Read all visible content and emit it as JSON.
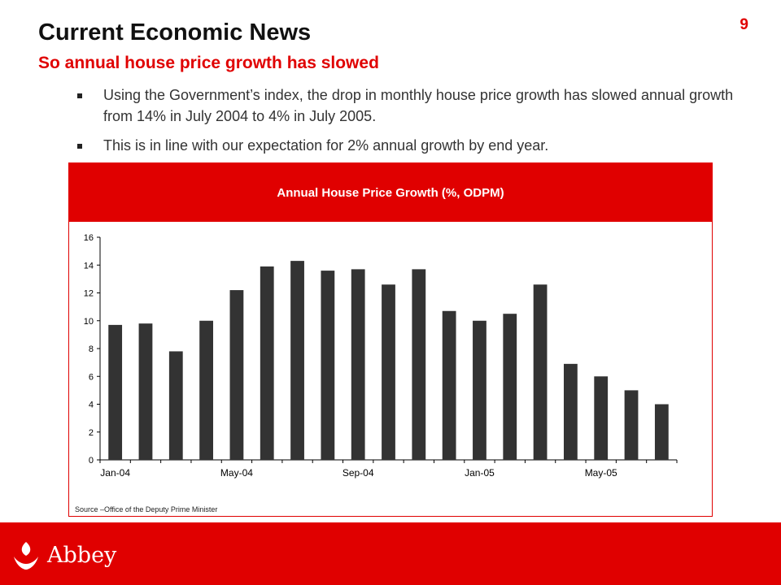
{
  "slide": {
    "page_number": "9",
    "title": "Current Economic News",
    "subtitle": "So annual house price growth has slowed",
    "bullets": [
      "Using the Government’s index, the drop in monthly house price growth has slowed annual growth from 14% in July 2004 to 4% in July 2005.",
      "This is in line with our expectation for 2% annual growth by end year."
    ],
    "source": "Source –Office of the Deputy Prime Minister",
    "logo_text": "Abbey"
  },
  "colors": {
    "accent": "#e00000",
    "bar": "#333333"
  },
  "icons": {
    "logo": "abbey-flame-icon"
  },
  "chart_data": {
    "type": "bar",
    "title": "Annual House Price Growth (%, ODPM)",
    "xlabel": "",
    "ylabel": "",
    "ylim": [
      0,
      16
    ],
    "yticks": [
      0,
      2,
      4,
      6,
      8,
      10,
      12,
      14,
      16
    ],
    "grid": false,
    "legend": "none",
    "categories": [
      "Jan-04",
      "Feb-04",
      "Mar-04",
      "Apr-04",
      "May-04",
      "Jun-04",
      "Jul-04",
      "Aug-04",
      "Sep-04",
      "Oct-04",
      "Nov-04",
      "Dec-04",
      "Jan-05",
      "Feb-05",
      "Mar-05",
      "Apr-05",
      "May-05",
      "Jun-05",
      "Jul-05"
    ],
    "xtick_labels": [
      "Jan-04",
      "May-04",
      "Sep-04",
      "Jan-05",
      "May-05"
    ],
    "values": [
      9.7,
      9.8,
      7.8,
      10.0,
      12.2,
      13.9,
      14.3,
      13.6,
      13.7,
      12.6,
      13.7,
      10.7,
      10.0,
      10.5,
      12.6,
      6.9,
      6.0,
      5.0,
      4.0
    ]
  }
}
